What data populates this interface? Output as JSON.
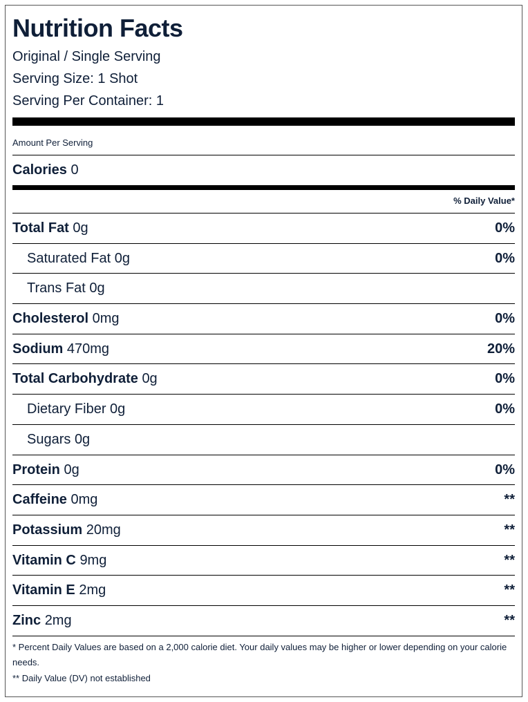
{
  "title": "Nutrition Facts",
  "serving_lines": [
    "Original / Single Serving",
    "Serving Size: 1 Shot",
    "Serving Per Container: 1"
  ],
  "amount_per_serving": "Amount Per Serving",
  "calories": {
    "label": "Calories",
    "value": "0"
  },
  "daily_value_header": "% Daily Value*",
  "rows": [
    {
      "name": "Total Fat",
      "amount": "0g",
      "dv": "0%",
      "subrows": [
        {
          "name": "Saturated Fat",
          "amount": "0g",
          "dv": "0%"
        },
        {
          "name": "Trans Fat",
          "amount": "0g"
        }
      ]
    },
    {
      "name": "Cholesterol",
      "amount": "0mg",
      "dv": "0%"
    },
    {
      "name": "Sodium",
      "amount": "470mg",
      "dv": "20%"
    },
    {
      "name": "Total Carbohydrate",
      "amount": "0g",
      "dv": "0%",
      "subrows": [
        {
          "name": "Dietary Fiber",
          "amount": "0g",
          "dv": "0%"
        },
        {
          "name": "Sugars",
          "amount": "0g"
        }
      ]
    },
    {
      "name": "Protein",
      "amount": "0g",
      "dv": "0%"
    },
    {
      "name": "Caffeine",
      "amount": "0mg",
      "dv": "**"
    },
    {
      "name": "Potassium",
      "amount": "20mg",
      "dv": "**"
    },
    {
      "name": "Vitamin C",
      "amount": "9mg",
      "dv": "**"
    },
    {
      "name": "Vitamin E",
      "amount": "2mg",
      "dv": "**"
    },
    {
      "name": "Zinc",
      "amount": "2mg",
      "dv": "**"
    }
  ],
  "footnotes": [
    "* Percent Daily Values are based on a 2,000 calorie diet. Your daily values may be higher or lower depending on your calorie needs.",
    "** Daily Value (DV) not established"
  ]
}
